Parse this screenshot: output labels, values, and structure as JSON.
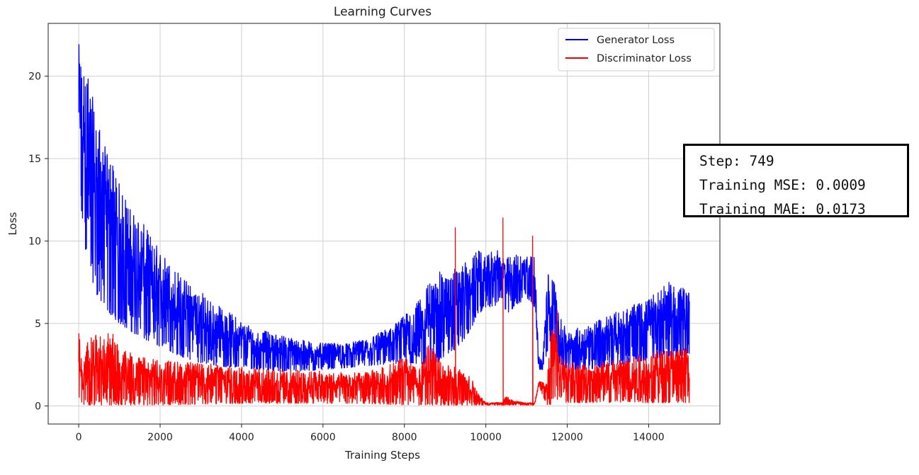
{
  "chart_data": {
    "type": "line",
    "title": "Learning Curves",
    "xlabel": "Training Steps",
    "ylabel": "Loss",
    "xlim": [
      -750,
      15750
    ],
    "ylim": [
      -1.1,
      23.2
    ],
    "xticks": [
      0,
      2000,
      4000,
      6000,
      8000,
      10000,
      12000,
      14000
    ],
    "yticks": [
      0,
      5,
      10,
      15,
      20
    ],
    "grid": true,
    "legend_position": "top-right",
    "series": [
      {
        "name": "Generator Loss",
        "color": "#0000ff",
        "x": [
          0,
          100,
          200,
          400,
          600,
          800,
          1000,
          1300,
          1600,
          2000,
          2500,
          3000,
          3500,
          4000,
          4500,
          5000,
          5500,
          6000,
          6500,
          7000,
          7500,
          8000,
          8200,
          8400,
          8600,
          8800,
          9000,
          9300,
          9600,
          9800,
          10000,
          10200,
          10400,
          10500,
          10700,
          11000,
          11200,
          11300,
          11400,
          11500,
          11600,
          11700,
          11800,
          12000,
          12500,
          13000,
          13500,
          14000,
          14500,
          15000
        ],
        "upper": [
          22.0,
          21.0,
          20.5,
          18.0,
          16.0,
          15.0,
          13.5,
          12.0,
          11.0,
          9.5,
          8.0,
          7.0,
          6.0,
          5.2,
          4.6,
          4.3,
          4.0,
          3.8,
          3.8,
          4.0,
          4.6,
          5.5,
          6.0,
          6.5,
          7.5,
          8.2,
          8.0,
          8.5,
          8.8,
          9.5,
          9.0,
          9.6,
          9.2,
          9.0,
          9.2,
          9.4,
          9.0,
          3.0,
          2.8,
          8.0,
          8.3,
          7.5,
          5.5,
          4.5,
          5.0,
          5.5,
          6.0,
          6.5,
          7.5,
          7.0
        ],
        "lower": [
          11.0,
          10.5,
          9.0,
          7.0,
          6.0,
          5.5,
          5.0,
          4.5,
          4.0,
          3.6,
          3.0,
          2.6,
          2.4,
          2.3,
          2.2,
          2.1,
          2.1,
          2.2,
          2.3,
          2.4,
          2.5,
          2.6,
          2.6,
          2.5,
          2.5,
          2.6,
          3.0,
          3.5,
          4.5,
          5.5,
          6.0,
          6.0,
          6.5,
          5.5,
          6.0,
          6.5,
          6.0,
          2.2,
          2.2,
          3.0,
          3.5,
          3.0,
          2.6,
          2.2,
          2.2,
          2.4,
          2.6,
          2.8,
          3.0,
          3.0
        ]
      },
      {
        "name": "Discriminator Loss",
        "color": "#ff0000",
        "x": [
          0,
          100,
          200,
          400,
          600,
          800,
          1000,
          1500,
          2000,
          3000,
          4000,
          5000,
          6000,
          7000,
          7500,
          8000,
          8200,
          8400,
          8600,
          8800,
          9000,
          9300,
          9600,
          9800,
          10000,
          10400,
          10500,
          10700,
          11000,
          11200,
          11300,
          11500,
          11600,
          11700,
          11800,
          12000,
          12500,
          13000,
          13500,
          14000,
          14500,
          15000
        ],
        "upper": [
          4.9,
          2.0,
          4.0,
          4.3,
          4.2,
          4.6,
          3.5,
          3.0,
          2.8,
          2.6,
          2.4,
          2.2,
          2.1,
          2.0,
          2.4,
          3.0,
          2.5,
          2.2,
          4.0,
          3.0,
          2.5,
          2.4,
          2.0,
          0.8,
          0.2,
          0.2,
          0.6,
          0.3,
          0.2,
          0.2,
          1.5,
          1.5,
          4.5,
          5.0,
          3.0,
          2.8,
          2.6,
          2.8,
          3.0,
          3.2,
          3.5,
          3.5
        ],
        "lower": [
          0.5,
          0.1,
          0.05,
          0.05,
          0.05,
          0.05,
          0.05,
          0.05,
          0.05,
          0.1,
          0.15,
          0.15,
          0.15,
          0.15,
          0.1,
          0.05,
          0.05,
          0.05,
          0.05,
          0.05,
          0.05,
          0.05,
          0.05,
          0.05,
          0.05,
          0.05,
          0.05,
          0.05,
          0.05,
          0.05,
          1.2,
          0.05,
          0.1,
          0.5,
          0.3,
          0.2,
          0.2,
          0.2,
          0.2,
          0.2,
          0.2,
          0.2
        ],
        "spikes": [
          [
            9250,
            10.8
          ],
          [
            10420,
            11.4
          ],
          [
            11150,
            10.3
          ],
          [
            11750,
            5.8
          ]
        ]
      }
    ]
  },
  "metrics": {
    "step": "Step: 749",
    "mse": "Training MSE: 0.0009",
    "mae": "Training MAE: 0.0173"
  }
}
